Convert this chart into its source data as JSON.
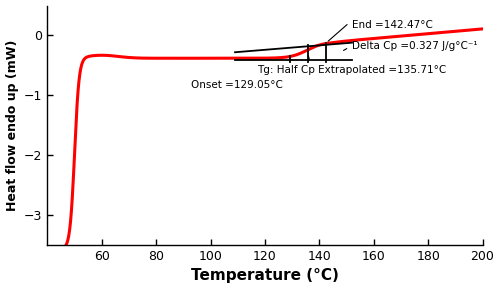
{
  "title": "",
  "xlabel": "Temperature (°C)",
  "ylabel": "Heat flow endo up (mW)",
  "xlim": [
    40,
    200
  ],
  "ylim": [
    -3.5,
    0.5
  ],
  "xticks": [
    60,
    80,
    100,
    120,
    140,
    160,
    180,
    200
  ],
  "yticks": [
    0,
    -1,
    -2,
    -3
  ],
  "curve_color": "#ff0000",
  "onset_temp": 129.05,
  "end_temp": 142.47,
  "half_cp_temp": 135.71,
  "delta_cp": 0.327,
  "onset_label": "Onset =129.05°C",
  "end_label": "End =142.47°C",
  "delta_cp_label": "Delta Cp =0.327 J/g°C⁻¹",
  "tg_label": "Tg: Half Cp Extrapolated =135.71°C",
  "plateau_level": -0.38,
  "post_tg_level": -0.13,
  "line_lower_y": -0.41,
  "line_upper_y1": -0.28,
  "line_upper_y2": -0.12,
  "line_x1": 109,
  "line_x2": 152
}
